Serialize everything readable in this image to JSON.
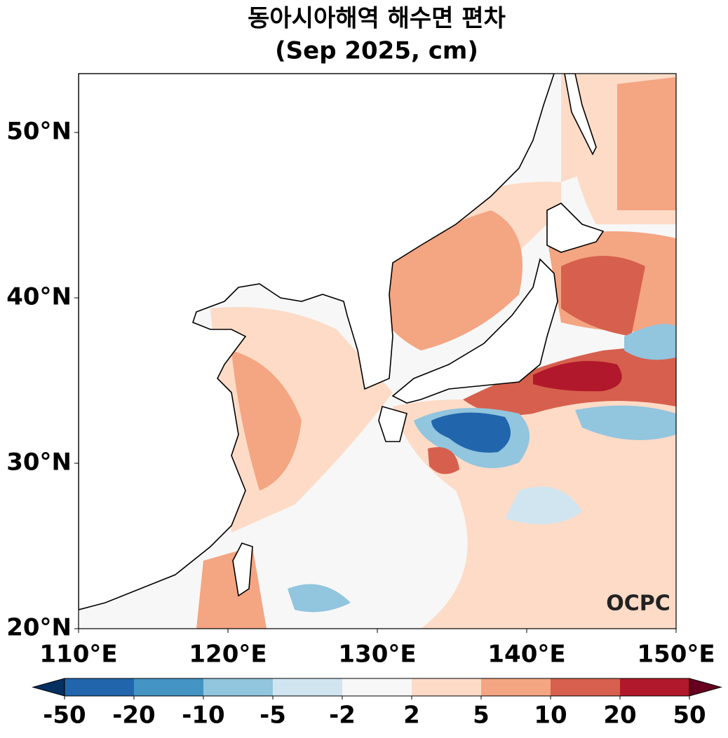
{
  "title": "동아시아해역 해수면 편차",
  "subtitle": "(Sep 2025, cm)",
  "map": {
    "xlim": [
      110,
      150
    ],
    "ylim": [
      20,
      53.56
    ],
    "xticks": [
      {
        "value": 110,
        "label": "110°E"
      },
      {
        "value": 120,
        "label": "120°E"
      },
      {
        "value": 130,
        "label": "130°E"
      },
      {
        "value": 140,
        "label": "140°E"
      },
      {
        "value": 150,
        "label": "150°E"
      }
    ],
    "yticks": [
      {
        "value": 20,
        "label": "20°N"
      },
      {
        "value": 30,
        "label": "30°N"
      },
      {
        "value": 40,
        "label": "40°N"
      },
      {
        "value": 50,
        "label": "50°N"
      }
    ],
    "watermark": "OCPC"
  },
  "colorbar": {
    "levels": [
      -50,
      -20,
      -10,
      -5,
      -2,
      2,
      5,
      10,
      20,
      50
    ],
    "colors": [
      "#053061",
      "#2166ac",
      "#4393c3",
      "#92c5de",
      "#d1e5f0",
      "#f7f7f7",
      "#fddbc7",
      "#f4a582",
      "#d6604d",
      "#b2182b",
      "#67001f"
    ]
  }
}
